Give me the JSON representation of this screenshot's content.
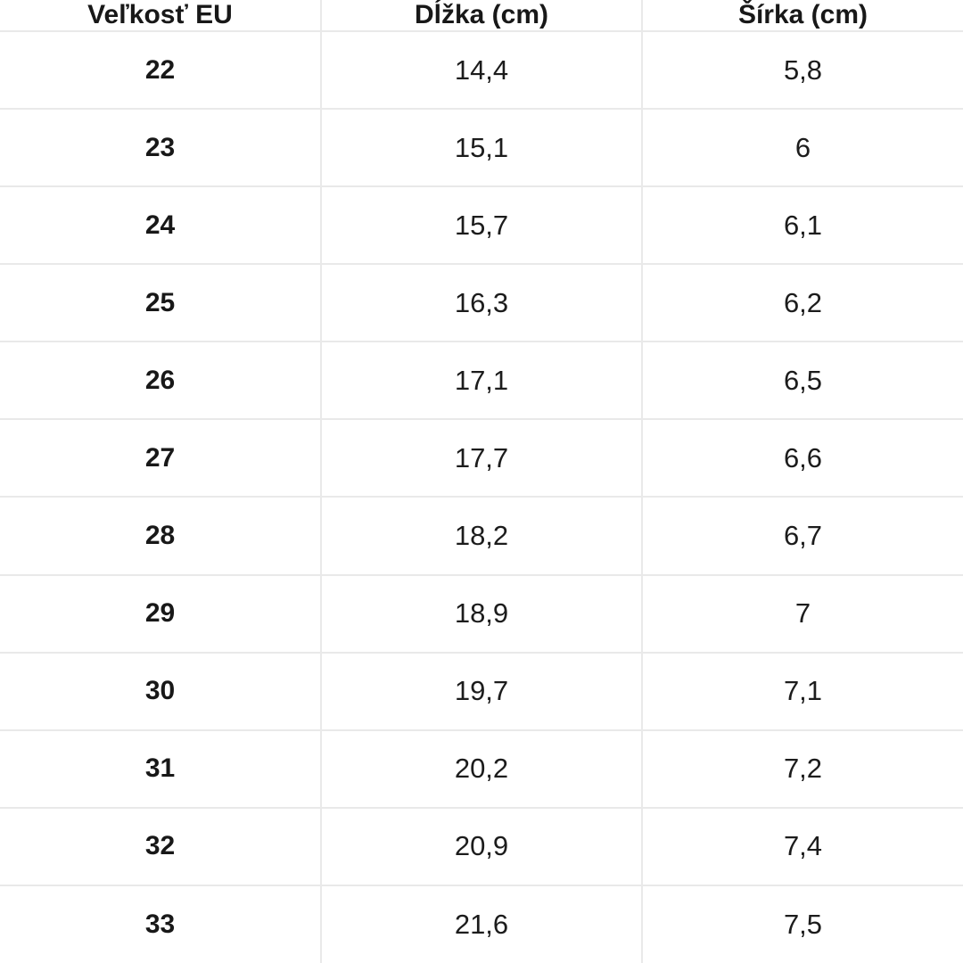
{
  "chart_data": {
    "type": "table",
    "columns": [
      "Veľkosť EU",
      "Dĺžka (cm)",
      "Šírka (cm)"
    ],
    "rows": [
      [
        "22",
        "14,4",
        "5,8"
      ],
      [
        "23",
        "15,1",
        "6"
      ],
      [
        "24",
        "15,7",
        "6,1"
      ],
      [
        "25",
        "16,3",
        "6,2"
      ],
      [
        "26",
        "17,1",
        "6,5"
      ],
      [
        "27",
        "17,7",
        "6,6"
      ],
      [
        "28",
        "18,2",
        "6,7"
      ],
      [
        "29",
        "18,9",
        "7"
      ],
      [
        "30",
        "19,7",
        "7,1"
      ],
      [
        "31",
        "20,2",
        "7,2"
      ],
      [
        "32",
        "20,9",
        "7,4"
      ],
      [
        "33",
        "21,6",
        "7,5"
      ]
    ]
  },
  "colors": {
    "background": "#ffffff",
    "grid_border": "#e9e9e9",
    "text": "#1c1c1c"
  }
}
